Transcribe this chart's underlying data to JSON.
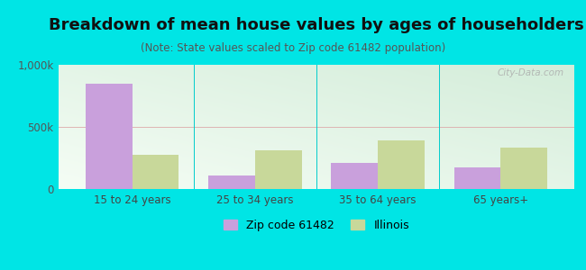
{
  "title": "Breakdown of mean house values by ages of householders",
  "subtitle": "(Note: State values scaled to Zip code 61482 population)",
  "categories": [
    "15 to 24 years",
    "25 to 34 years",
    "35 to 64 years",
    "65 years+"
  ],
  "zip_values": [
    850000,
    110000,
    210000,
    175000
  ],
  "il_values": [
    275000,
    315000,
    390000,
    330000
  ],
  "zip_color": "#c9a0dc",
  "il_color": "#c8d89a",
  "background_color": "#00e5e5",
  "plot_bg_top_right": "#d4edda",
  "plot_bg_bottom_left": "#f5fdf5",
  "ylim": [
    0,
    1000000
  ],
  "ytick_labels": [
    "0",
    "500k",
    "1,000k"
  ],
  "legend_zip_label": "Zip code 61482",
  "legend_il_label": "Illinois",
  "bar_width": 0.38,
  "title_fontsize": 13,
  "subtitle_fontsize": 8.5,
  "axis_fontsize": 8.5,
  "legend_fontsize": 9,
  "watermark": "City-Data.com"
}
